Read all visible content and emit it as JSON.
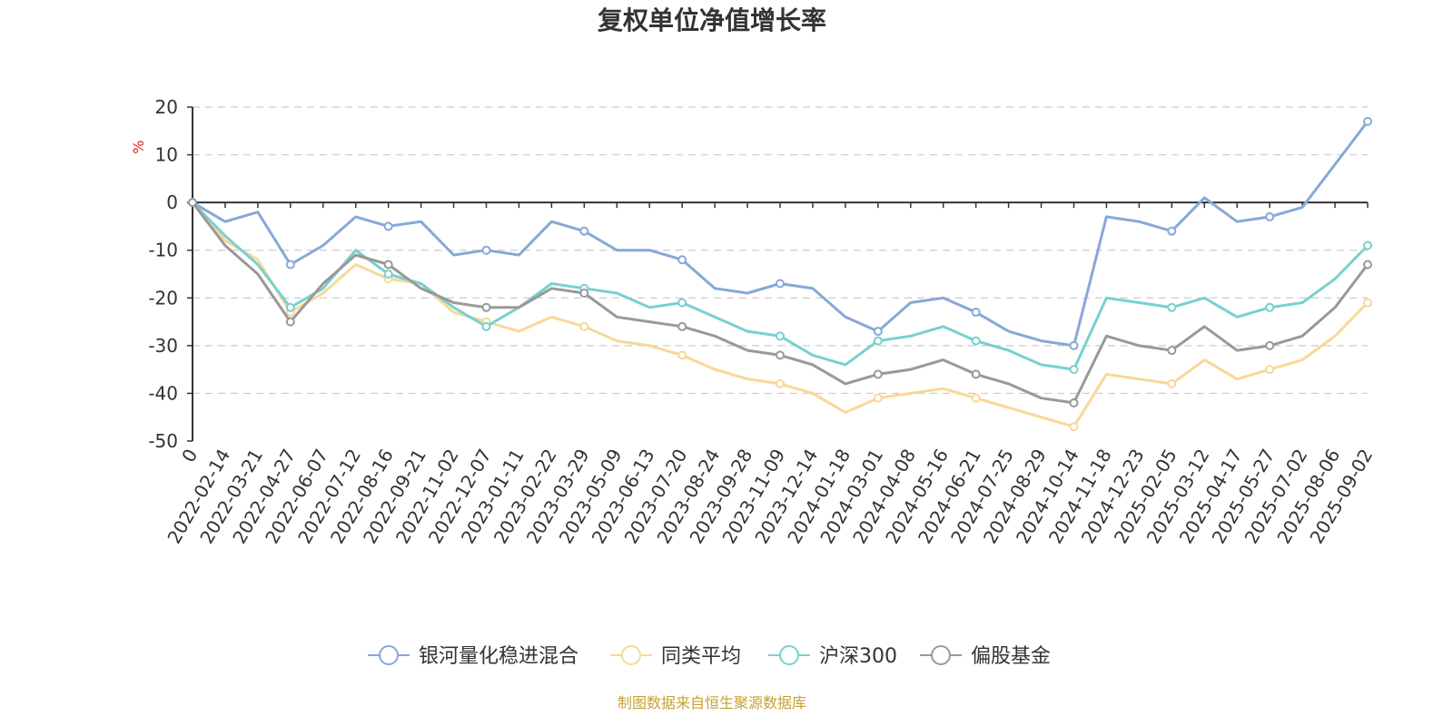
{
  "chart_data": {
    "type": "line",
    "title": "复权单位净值增长率",
    "ylabel": "%",
    "xlabel": "",
    "ylim": [
      -50,
      20
    ],
    "yticks": [
      20,
      10,
      0,
      -10,
      -20,
      -30,
      -40,
      -50
    ],
    "grid": true,
    "legend_position": "bottom",
    "x": [
      "0",
      "2022-02-14",
      "2022-03-21",
      "2022-04-27",
      "2022-06-07",
      "2022-07-12",
      "2022-08-16",
      "2022-09-21",
      "2022-11-02",
      "2022-12-07",
      "2023-01-11",
      "2023-02-22",
      "2023-03-29",
      "2023-05-09",
      "2023-06-13",
      "2023-07-20",
      "2023-08-24",
      "2023-09-28",
      "2023-11-09",
      "2023-12-14",
      "2024-01-18",
      "2024-03-01",
      "2024-04-08",
      "2024-05-16",
      "2024-06-21",
      "2024-07-25",
      "2024-08-29",
      "2024-10-14",
      "2024-11-18",
      "2024-12-23",
      "2025-02-05",
      "2025-03-12",
      "2025-04-17",
      "2025-05-27",
      "2025-07-02",
      "2025-08-06",
      "2025-09-02"
    ],
    "series": [
      {
        "name": "银河量化稳进混合",
        "color": "#87a8d8",
        "values": [
          0,
          -4,
          -2,
          -13,
          -9,
          -3,
          -5,
          -4,
          -11,
          -10,
          -11,
          -4,
          -6,
          -10,
          -10,
          -12,
          -18,
          -19,
          -17,
          -18,
          -24,
          -27,
          -21,
          -20,
          -23,
          -27,
          -29,
          -30,
          -3,
          -4,
          -6,
          1,
          -4,
          -3,
          -1,
          8,
          17
        ]
      },
      {
        "name": "同类平均",
        "color": "#f8d898",
        "values": [
          0,
          -8,
          -12,
          -23,
          -19,
          -13,
          -16,
          -17,
          -23,
          -25,
          -27,
          -24,
          -26,
          -29,
          -30,
          -32,
          -35,
          -37,
          -38,
          -40,
          -44,
          -41,
          -40,
          -39,
          -41,
          -43,
          -45,
          -47,
          -36,
          -37,
          -38,
          -33,
          -37,
          -35,
          -33,
          -28,
          -21
        ]
      },
      {
        "name": "沪深300",
        "color": "#78d0d0",
        "values": [
          0,
          -7,
          -13,
          -22,
          -18,
          -10,
          -15,
          -17,
          -22,
          -26,
          -22,
          -17,
          -18,
          -19,
          -22,
          -21,
          -24,
          -27,
          -28,
          -32,
          -34,
          -29,
          -28,
          -26,
          -29,
          -31,
          -34,
          -35,
          -20,
          -21,
          -22,
          -20,
          -24,
          -22,
          -21,
          -16,
          -9
        ]
      },
      {
        "name": "偏股基金",
        "color": "#999999",
        "values": [
          0,
          -9,
          -15,
          -25,
          -17,
          -11,
          -13,
          -18,
          -21,
          -22,
          -22,
          -18,
          -19,
          -24,
          -25,
          -26,
          -28,
          -31,
          -32,
          -34,
          -38,
          -36,
          -35,
          -33,
          -36,
          -38,
          -41,
          -42,
          -28,
          -30,
          -31,
          -26,
          -31,
          -30,
          -28,
          -22,
          -13
        ]
      }
    ]
  },
  "source_note": "制图数据来自恒生聚源数据库"
}
